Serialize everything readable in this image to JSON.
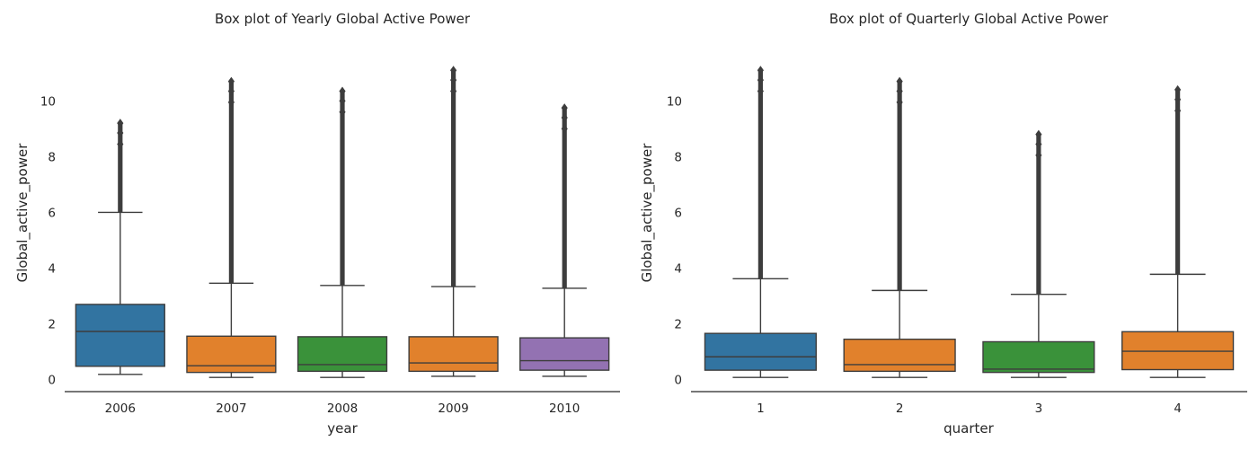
{
  "chart_data": [
    {
      "type": "box",
      "title": "Box plot of Yearly Global Active Power",
      "xlabel": "year",
      "ylabel": "Global_active_power",
      "ylim": [
        -0.3,
        11.3
      ],
      "yticks": [
        0,
        2,
        4,
        6,
        8,
        10
      ],
      "grid": false,
      "categories": [
        "2006",
        "2007",
        "2008",
        "2009",
        "2010"
      ],
      "colors": [
        "#3274a1",
        "#e1812c",
        "#3a923a",
        "#e1812c",
        "#9372b2"
      ],
      "series": [
        {
          "category": "2006",
          "whisker_low": 0.19,
          "q1": 0.48,
          "median": 1.73,
          "q3": 2.7,
          "whisker_high": 6.0,
          "outlier_max": 9.2
        },
        {
          "category": "2007",
          "whisker_low": 0.08,
          "q1": 0.26,
          "median": 0.5,
          "q3": 1.56,
          "whisker_high": 3.46,
          "outlier_max": 10.7
        },
        {
          "category": "2008",
          "whisker_low": 0.08,
          "q1": 0.3,
          "median": 0.54,
          "q3": 1.54,
          "whisker_high": 3.38,
          "outlier_max": 10.35
        },
        {
          "category": "2009",
          "whisker_low": 0.12,
          "q1": 0.3,
          "median": 0.6,
          "q3": 1.54,
          "whisker_high": 3.34,
          "outlier_max": 11.1
        },
        {
          "category": "2010",
          "whisker_low": 0.12,
          "q1": 0.34,
          "median": 0.68,
          "q3": 1.5,
          "whisker_high": 3.28,
          "outlier_max": 9.75
        }
      ]
    },
    {
      "type": "box",
      "title": "Box plot of Quarterly Global Active Power",
      "xlabel": "quarter",
      "ylabel": "Global_active_power",
      "ylim": [
        -0.3,
        11.3
      ],
      "yticks": [
        0,
        2,
        4,
        6,
        8,
        10
      ],
      "grid": false,
      "categories": [
        "1",
        "2",
        "3",
        "4"
      ],
      "colors": [
        "#3274a1",
        "#e1812c",
        "#3a923a",
        "#e1812c"
      ],
      "series": [
        {
          "category": "1",
          "whisker_low": 0.08,
          "q1": 0.34,
          "median": 0.82,
          "q3": 1.66,
          "whisker_high": 3.62,
          "outlier_max": 11.1
        },
        {
          "category": "2",
          "whisker_low": 0.08,
          "q1": 0.3,
          "median": 0.54,
          "q3": 1.45,
          "whisker_high": 3.2,
          "outlier_max": 10.7
        },
        {
          "category": "3",
          "whisker_low": 0.08,
          "q1": 0.26,
          "median": 0.38,
          "q3": 1.36,
          "whisker_high": 3.06,
          "outlier_max": 8.8
        },
        {
          "category": "4",
          "whisker_low": 0.08,
          "q1": 0.36,
          "median": 1.02,
          "q3": 1.72,
          "whisker_high": 3.78,
          "outlier_max": 10.4
        }
      ]
    }
  ]
}
